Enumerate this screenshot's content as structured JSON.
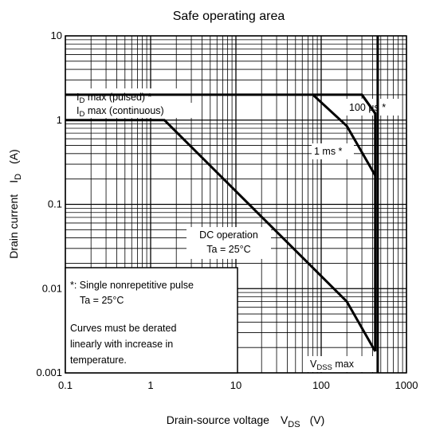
{
  "chart_data": {
    "type": "line",
    "title": "Safe operating area",
    "xlabel": {
      "main": "Drain-source voltage",
      "symbol": "V",
      "subscript": "DS",
      "unit": "(V)"
    },
    "ylabel": {
      "main": "Drain current",
      "symbol": "I",
      "subscript": "D",
      "unit": "(A)"
    },
    "x_scale": "log",
    "y_scale": "log",
    "xlim": [
      0.1,
      1000
    ],
    "ylim": [
      0.001,
      10
    ],
    "x_ticks": [
      "0.1",
      "1",
      "10",
      "100",
      "1000"
    ],
    "y_ticks": [
      "10",
      "1",
      "0.1",
      "0.01",
      "0.001"
    ],
    "grid": true,
    "series": [
      {
        "name": "ID max (pulsed)",
        "points": [
          [
            0.1,
            2.0
          ],
          [
            300,
            2.0
          ],
          [
            430,
            1.2
          ],
          [
            430,
            0.0018
          ]
        ]
      },
      {
        "name": "100 µs",
        "points": [
          [
            300,
            2.0
          ],
          [
            430,
            1.2
          ]
        ]
      },
      {
        "name": "1 ms",
        "points": [
          [
            80,
            2.0
          ],
          [
            200,
            0.85
          ],
          [
            430,
            0.22
          ]
        ]
      },
      {
        "name": "DC operation",
        "points": [
          [
            0.1,
            1.0
          ],
          [
            1.45,
            1.0
          ],
          [
            200,
            0.007
          ],
          [
            430,
            0.0018
          ]
        ]
      },
      {
        "name": "VDSS max",
        "points": [
          [
            460,
            0.001
          ],
          [
            460,
            10
          ]
        ]
      }
    ],
    "annotations": [
      {
        "text": "I",
        "sub": "D",
        "rest": " max (pulsed) *"
      },
      {
        "text": "I",
        "sub": "D",
        "rest": " max (continuous)"
      },
      {
        "text": "100 µs *"
      },
      {
        "text": "1 ms *"
      },
      {
        "lines": [
          "DC operation",
          "Ta = 25°C"
        ]
      },
      {
        "text": "V",
        "sub": "DSS",
        "rest": " max"
      }
    ],
    "note": {
      "line1": "*: Single nonrepetitive pulse",
      "line2": "Ta = 25°C",
      "line3": "Curves must be derated",
      "line4": "linearly with increase in",
      "line5": "temperature."
    }
  }
}
